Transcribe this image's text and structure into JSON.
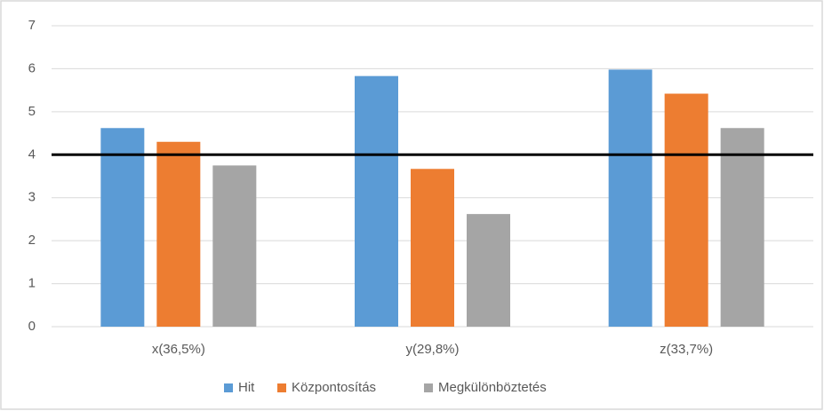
{
  "chart_data": {
    "type": "bar",
    "categories": [
      "x(36,5%)",
      "y(29,8%)",
      "z(33,7%)"
    ],
    "series": [
      {
        "name": "Hit",
        "color": "#5b9bd5",
        "values": [
          4.62,
          5.83,
          5.98
        ]
      },
      {
        "name": "Központosítás",
        "color": "#ed7d31",
        "values": [
          4.3,
          3.67,
          5.42
        ]
      },
      {
        "name": "Megkülönböztetés",
        "color": "#a5a5a5",
        "values": [
          3.75,
          2.62,
          4.62
        ]
      }
    ],
    "ylim": [
      0,
      7
    ],
    "yticks": [
      0,
      1,
      2,
      3,
      4,
      5,
      6,
      7
    ],
    "grid": true,
    "reference_line": 4,
    "legend": "bottom"
  }
}
